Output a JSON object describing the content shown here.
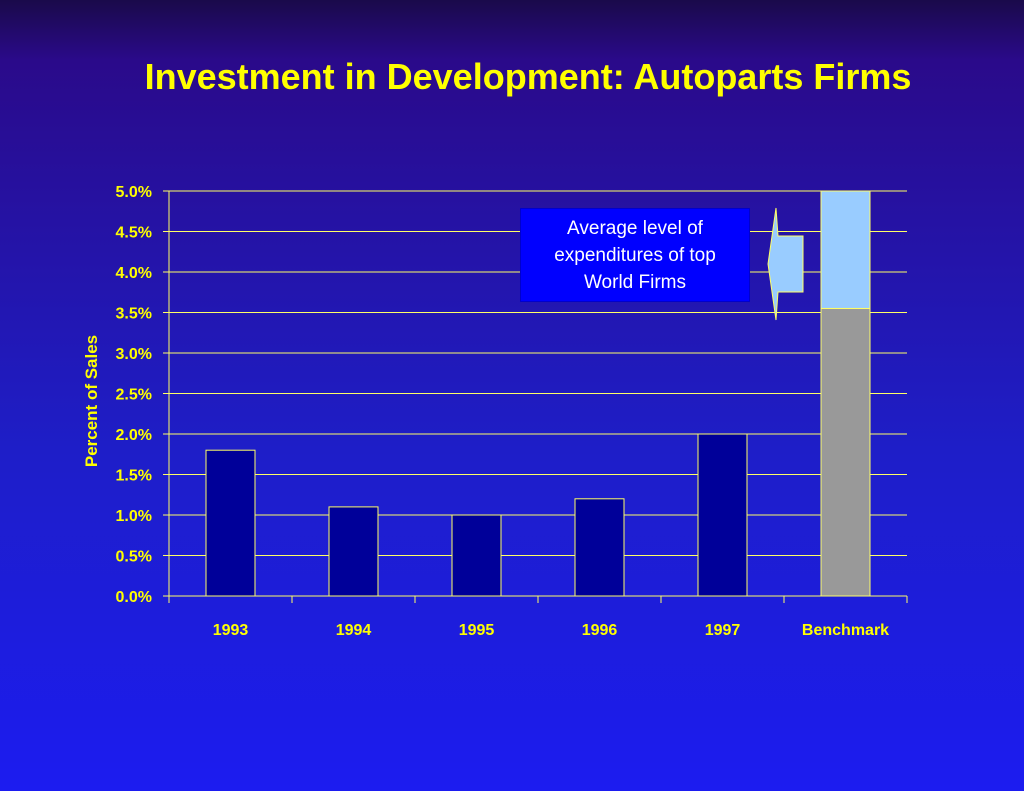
{
  "slide": {
    "title": "Investment in Development: Autoparts Firms",
    "callout": "Average level of expenditures of top World  Firms"
  },
  "colors": {
    "title": "#ffff00",
    "bar_fill": "#000099",
    "bar_border": "#ffff66",
    "benchmark_lower": "#999999",
    "benchmark_upper": "#99ccff",
    "gridline": "#ffff66",
    "callout_bg": "#0000ff"
  },
  "chart_data": {
    "type": "bar",
    "categories": [
      "1993",
      "1994",
      "1995",
      "1996",
      "1997",
      "Benchmark"
    ],
    "values": [
      0.018,
      0.011,
      0.01,
      0.012,
      0.02,
      0.05
    ],
    "benchmark_segments": [
      {
        "values": 0.0355,
        "color": "#999999"
      },
      {
        "values": 0.0145,
        "color": "#99ccff"
      }
    ],
    "title": "",
    "xlabel": "",
    "ylabel": "Percent of Sales",
    "ylim": [
      0,
      0.05
    ],
    "yticks": [
      "0.0%",
      "0.5%",
      "1.0%",
      "1.5%",
      "2.0%",
      "2.5%",
      "3.0%",
      "3.5%",
      "4.0%",
      "4.5%",
      "5.0%"
    ],
    "grid": true,
    "legend": "none"
  }
}
